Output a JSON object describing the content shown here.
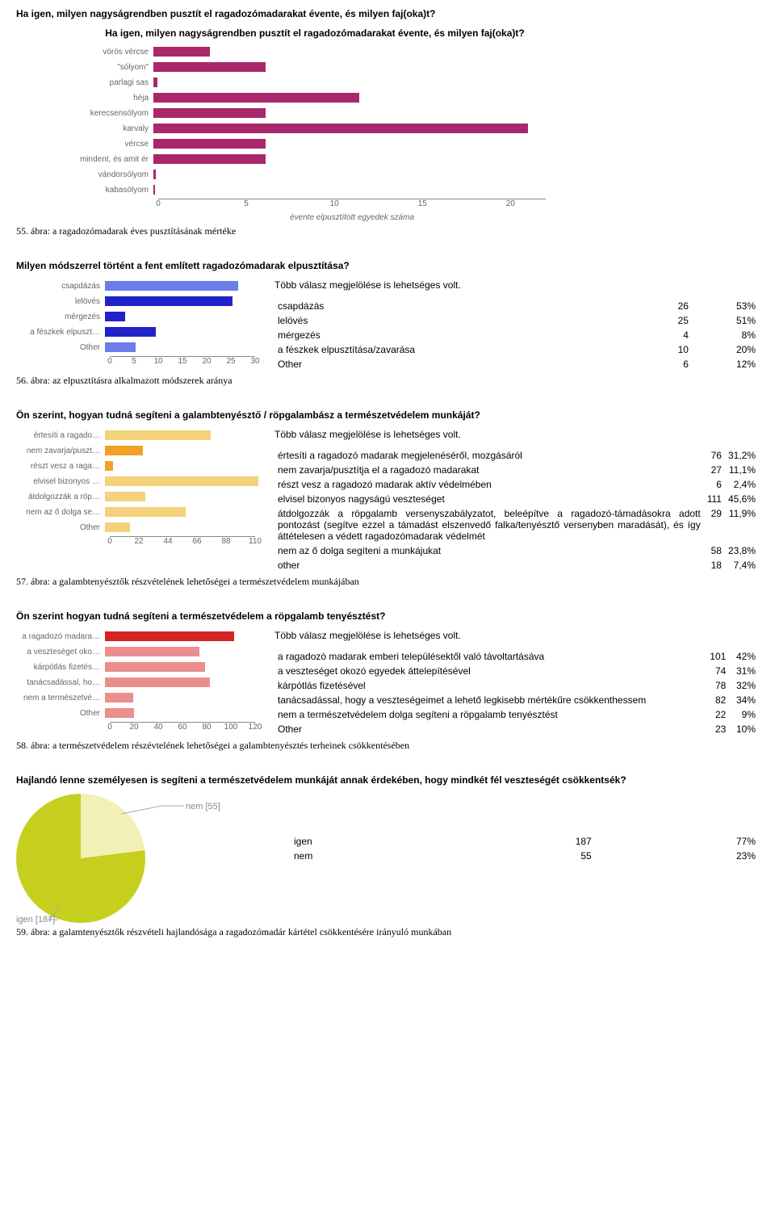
{
  "section1": {
    "heading": "Ha igen, milyen nagyságrendben pusztít el ragadozómadarakat évente, és milyen faj(oka)t?",
    "chart_title": "Ha igen, milyen nagyságrendben pusztít el ragadozómadarakat évente, és milyen faj(oka)t?",
    "caption": "55. ábra: a ragadozómadarak éves pusztításának mértéke",
    "chart": {
      "type": "bar-horizontal",
      "xlim": 22,
      "ticks": [
        0,
        5,
        10,
        15,
        20
      ],
      "xlabel": "évente elpusztított egyedek száma",
      "bar_color": "#a9286c",
      "label_color": "#666666",
      "categories": [
        "vörös vércse",
        "\"sólyom\"",
        "parlagi sas",
        "héja",
        "kerecsensólyom",
        "karvaly",
        "vércse",
        "mindent, és amit ér",
        "vándorsólyom",
        "kabasólyom"
      ],
      "values": [
        3.0,
        6.0,
        0.2,
        11.0,
        6.0,
        20.0,
        6.0,
        6.0,
        0.15,
        0.1
      ]
    }
  },
  "section2": {
    "heading": "Milyen módszerrel történt a fent említett ragadozómadarak elpusztítása?",
    "multi_note": "Több válasz megjelölése is lehetséges volt.",
    "caption": "56. ábra: az elpusztításra alkalmazott módszerek aránya",
    "chart": {
      "type": "bar-horizontal",
      "xlim": 30,
      "ticks": [
        0,
        5,
        10,
        15,
        20,
        25,
        30
      ],
      "bar_colors": [
        "#6b7de8",
        "#2222c9",
        "#2222c9",
        "#2222c9",
        "#6b7de8"
      ],
      "label_color": "#666666",
      "categories": [
        "csapdázás",
        "lelövés",
        "mérgezés",
        "a fészkek elpuszt…",
        "Other"
      ],
      "values": [
        26,
        25,
        4,
        10,
        6
      ]
    },
    "table": {
      "rows": [
        {
          "label": "csapdázás",
          "count": "26",
          "pct": "53%"
        },
        {
          "label": "lelövés",
          "count": "25",
          "pct": "51%"
        },
        {
          "label": "mérgezés",
          "count": "4",
          "pct": "8%"
        },
        {
          "label": "a fészkek elpusztítása/zavarása",
          "count": "10",
          "pct": "20%"
        },
        {
          "label": "Other",
          "count": "6",
          "pct": "12%"
        }
      ]
    }
  },
  "section3": {
    "heading": "Ön szerint, hogyan tudná segíteni a galambtenyésztő / röpgalambász a természetvédelem munkáját?",
    "multi_note": "Több válasz megjelölése is lehetséges volt.",
    "caption": "57. ábra: a galambtenyésztők részvételének lehetőségei a természetvédelem munkájában",
    "chart": {
      "type": "bar-horizontal",
      "xlim": 110,
      "ticks": [
        0,
        22,
        44,
        66,
        88,
        110
      ],
      "bar_colors": [
        "#f4d27a",
        "#f2a126",
        "#f2a126",
        "#f4d27a",
        "#f4d27a",
        "#f4d27a",
        "#f4d27a"
      ],
      "label_color": "#666666",
      "categories": [
        "értesíti a ragado…",
        "nem zavarja/puszt…",
        "részt vesz a raga…",
        "elvisel bizonyos …",
        "átdolgozzák a röp…",
        "nem az ő dolga se…",
        "Other"
      ],
      "values": [
        76,
        27,
        6,
        111,
        29,
        58,
        18
      ]
    },
    "table": {
      "rows": [
        {
          "label": "értesíti a ragadozó madarak megjelenéséről, mozgásáról",
          "count": "76",
          "pct": "31,2%"
        },
        {
          "label": "nem zavarja/pusztítja el a ragadozó madarakat",
          "count": "27",
          "pct": "11,1%"
        },
        {
          "label": "részt vesz a ragadozó madarak aktív védelmében",
          "count": "6",
          "pct": "2,4%"
        },
        {
          "label": "elvisel bizonyos nagyságú veszteséget",
          "count": "111",
          "pct": "45,6%"
        },
        {
          "label": "átdolgozzák a röpgalamb versenyszabályzatot, beleépítve a ragadozó-támadásokra adott pontozást (segítve ezzel a támadást elszenvedő falka/tenyésztő versenyben maradását), és így áttételesen a védett ragadozómadarak védelmét",
          "count": "29",
          "pct": "11,9%"
        },
        {
          "label": "nem az ő dolga segíteni a munkájukat",
          "count": "58",
          "pct": "23,8%"
        },
        {
          "label": "other",
          "count": "18",
          "pct": "7,4%"
        }
      ]
    }
  },
  "section4": {
    "heading": "Ön szerint hogyan tudná segíteni a természetvédelem a röpgalamb tenyésztést?",
    "multi_note": "Több válasz megjelölése is lehetséges volt.",
    "caption": "58. ábra: a természetvédelem részévtelének lehetőségei a galambtenyésztés terheinek csökkentésében",
    "chart": {
      "type": "bar-horizontal",
      "xlim": 120,
      "ticks": [
        0,
        20,
        40,
        60,
        80,
        100,
        120
      ],
      "bar_colors": [
        "#d62424",
        "#ea8e8e",
        "#ea8e8e",
        "#ea8e8e",
        "#ea8e8e",
        "#ea8e8e"
      ],
      "label_color": "#666666",
      "categories": [
        "a ragadozó madara…",
        "a veszteséget oko…",
        "kárpótlás fizetés…",
        "tanácsadással, ho…",
        "nem a természetvé…",
        "Other"
      ],
      "values": [
        101,
        74,
        78,
        82,
        22,
        23
      ]
    },
    "table": {
      "rows": [
        {
          "label": "a ragadozó madarak emberi településektől való távoltartásáva",
          "count": "101",
          "pct": "42%"
        },
        {
          "label": "a veszteséget okozó egyedek áttelepítésével",
          "count": "74",
          "pct": "31%"
        },
        {
          "label": "kárpótlás fizetésével",
          "count": "78",
          "pct": "32%"
        },
        {
          "label": "tanácsadással, hogy a veszteségeimet a lehető legkisebb mértékűre csökkenthessem",
          "count": "82",
          "pct": "34%"
        },
        {
          "label": "nem a természetvédelem dolga segíteni a röpgalamb tenyésztést",
          "count": "22",
          "pct": "9%"
        },
        {
          "label": "Other",
          "count": "23",
          "pct": "10%"
        }
      ]
    }
  },
  "section5": {
    "heading": "Hajlandó lenne személyesen is segíteni a természetvédelem munkáját annak érdekében, hogy mindkét fél veszteségét csökkentsék?",
    "caption": "59. ábra: a galamtenyésztők részvételi hajlandósága a ragadozómadár kártétel csökkentésére irányuló munkában",
    "pie": {
      "type": "pie",
      "igen_pct": 77,
      "nem_pct": 23,
      "igen_color": "#c7cf1e",
      "nem_color": "#f3f0b6",
      "igen_label": "igen [187]",
      "nem_label": "nem [55]"
    },
    "table": {
      "rows": [
        {
          "label": "igen",
          "count": "187",
          "pct": "77%"
        },
        {
          "label": "nem",
          "count": "55",
          "pct": "23%"
        }
      ]
    }
  }
}
